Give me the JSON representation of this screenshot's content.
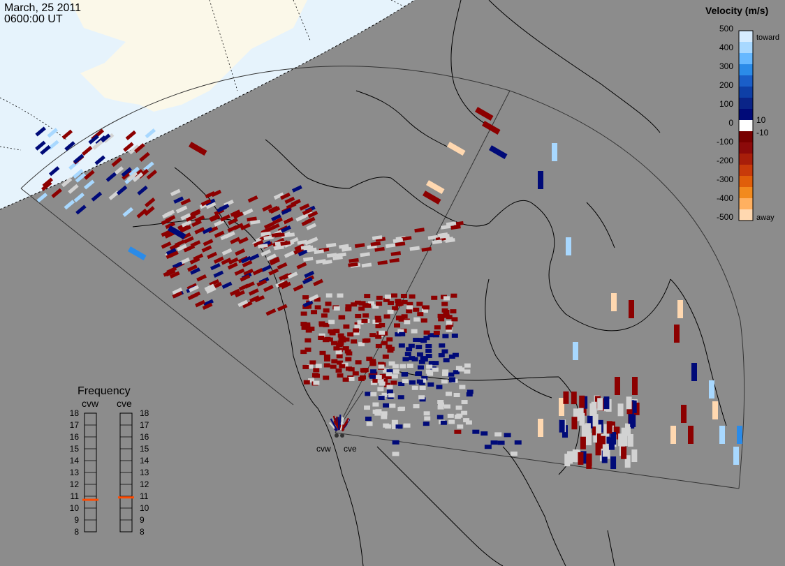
{
  "header": {
    "date": "March, 25 2011",
    "time": "0600:00 UT"
  },
  "colors": {
    "background": "#8c8c8c",
    "daylight": "#fbf8e9",
    "ocean_day": "#e6f3fc",
    "no_data_gray": "#d2d2d2",
    "coastline": "#000000"
  },
  "velocity_scale": {
    "title": "Velocity (m/s)",
    "labels": [
      "500",
      "400",
      "300",
      "200",
      "100",
      "10",
      "0",
      "-10",
      "-100",
      "-200",
      "-300",
      "-400",
      "-500"
    ],
    "toward_label": "toward",
    "away_label": "away",
    "colors": [
      "#d6ecff",
      "#a8d8ff",
      "#66b8ff",
      "#2b8be8",
      "#1a5ec8",
      "#0e3fa6",
      "#0a2488",
      "#000a78",
      "#ffffff",
      "#780000",
      "#8c0a0a",
      "#a81e0a",
      "#c83a0a",
      "#e05e0a",
      "#f28a1e",
      "#ffb060",
      "#ffd8b0"
    ]
  },
  "frequency_panel": {
    "title": "Frequency",
    "radars": [
      {
        "code": "cvw",
        "frequency_mhz": 10.7
      },
      {
        "code": "cve",
        "frequency_mhz": 10.9
      }
    ],
    "ticks": [
      "18",
      "17",
      "16",
      "15",
      "14",
      "13",
      "12",
      "11",
      "10",
      "9",
      "8"
    ],
    "marker_color": "#ff4a00"
  },
  "radar_sites": [
    {
      "code": "cvw",
      "name_label": "cvw"
    },
    {
      "code": "cve",
      "name_label": "cve"
    }
  ]
}
